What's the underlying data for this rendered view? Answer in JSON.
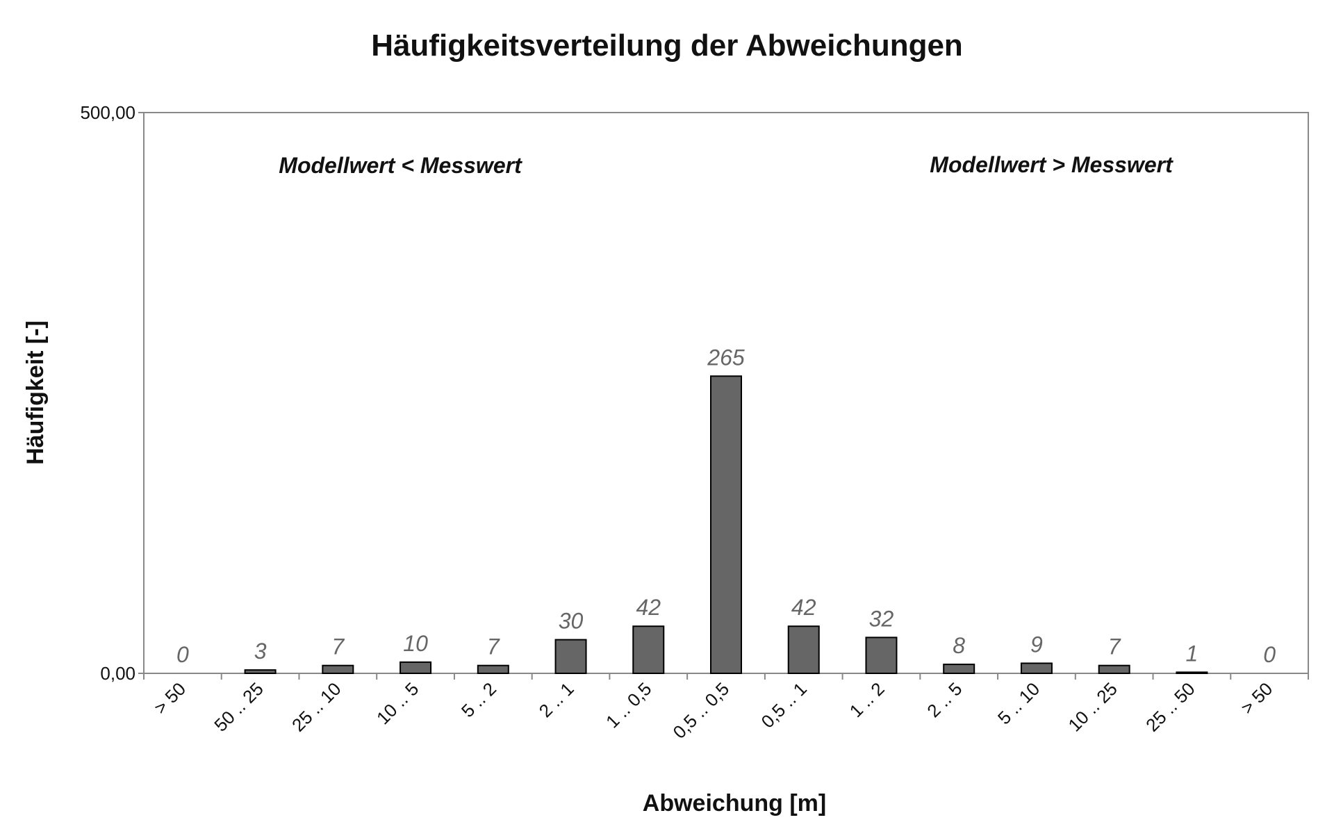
{
  "chart_data": {
    "type": "bar",
    "title": "Häufigkeitsverteilung der Abweichungen",
    "xlabel": "Abweichung [m]",
    "ylabel": "Häufigkeit [-]",
    "ylim": [
      0,
      500
    ],
    "ytick_labels": [
      "0,00",
      "500,00"
    ],
    "categories": [
      "> 50",
      "50 .. 25",
      "25 .. 10",
      "10 .. 5",
      "5 .. 2",
      "2 .. 1",
      "1 .. 0,5",
      "0,5 .. 0,5",
      "0,5 .. 1",
      "1 .. 2",
      "2 .. 5",
      "5 .. 10",
      "10 .. 25",
      "25 .. 50",
      "> 50"
    ],
    "values": [
      0,
      3,
      7,
      10,
      7,
      30,
      42,
      265,
      42,
      32,
      8,
      9,
      7,
      1,
      0
    ],
    "data_labels": [
      "0",
      "3",
      "7",
      "10",
      "7",
      "30",
      "42",
      "265",
      "42",
      "32",
      "8",
      "9",
      "7",
      "1",
      "0"
    ],
    "annotations": [
      "Modellwert < Messwert",
      "Modellwert > Messwert"
    ],
    "grid": false,
    "legend": "none",
    "bar_color": "#666666"
  }
}
